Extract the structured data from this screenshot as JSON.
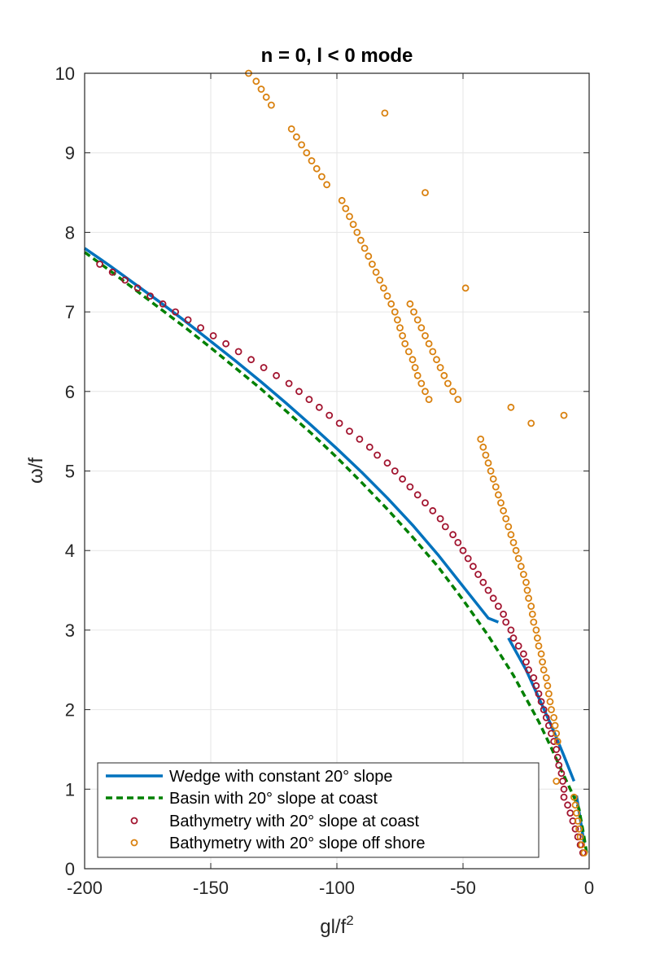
{
  "chart_data": {
    "type": "line",
    "title": "n = 0, l < 0 mode",
    "xlabel": "gl/f",
    "xlabel_sup": "2",
    "ylabel": "ω/f",
    "xlim": [
      -200,
      0
    ],
    "ylim": [
      0,
      10
    ],
    "xticks": [
      -200,
      -150,
      -100,
      -50,
      0
    ],
    "yticks": [
      0,
      1,
      2,
      3,
      4,
      5,
      6,
      7,
      8,
      9,
      10
    ],
    "xtick_labels": [
      "-200",
      "-150",
      "-100",
      "-50",
      "0"
    ],
    "ytick_labels": [
      "0",
      "1",
      "2",
      "3",
      "4",
      "5",
      "6",
      "7",
      "8",
      "9",
      "10"
    ],
    "grid": true,
    "legend_position": "bottom-left",
    "series": [
      {
        "name": "Wedge with constant 20° slope",
        "style": "solid-line",
        "color": "#0072BD",
        "segments": [
          [
            [
              -200,
              7.8
            ],
            [
              -190,
              7.58
            ],
            [
              -180,
              7.35
            ],
            [
              -170,
              7.12
            ],
            [
              -160,
              6.88
            ],
            [
              -150,
              6.63
            ],
            [
              -140,
              6.38
            ],
            [
              -130,
              6.12
            ],
            [
              -120,
              5.85
            ],
            [
              -110,
              5.57
            ],
            [
              -100,
              5.28
            ],
            [
              -90,
              4.98
            ],
            [
              -80,
              4.66
            ],
            [
              -70,
              4.32
            ],
            [
              -60,
              3.95
            ],
            [
              -50,
              3.55
            ],
            [
              -40,
              3.15
            ],
            [
              -36,
              3.1
            ]
          ],
          [
            [
              -32,
              2.9
            ],
            [
              -25,
              2.5
            ],
            [
              -20,
              2.15
            ],
            [
              -15,
              1.8
            ],
            [
              -10,
              1.42
            ],
            [
              -6,
              1.1
            ]
          ],
          [
            [
              -5,
              0.92
            ],
            [
              -4,
              0.72
            ],
            [
              -3,
              0.52
            ],
            [
              -2,
              0.32
            ]
          ]
        ]
      },
      {
        "name": "Basin with 20° slope at coast",
        "style": "dashed-line",
        "color": "#008000",
        "segments": [
          [
            [
              -200,
              7.75
            ],
            [
              -190,
              7.52
            ],
            [
              -180,
              7.28
            ],
            [
              -170,
              7.04
            ],
            [
              -160,
              6.8
            ],
            [
              -150,
              6.55
            ],
            [
              -140,
              6.29
            ],
            [
              -130,
              6.03
            ],
            [
              -120,
              5.75
            ],
            [
              -110,
              5.47
            ],
            [
              -100,
              5.17
            ],
            [
              -90,
              4.85
            ],
            [
              -80,
              4.52
            ],
            [
              -70,
              4.17
            ],
            [
              -60,
              3.8
            ],
            [
              -50,
              3.38
            ],
            [
              -40,
              2.93
            ],
            [
              -30,
              2.43
            ],
            [
              -20,
              1.85
            ],
            [
              -15,
              1.52
            ],
            [
              -10,
              1.17
            ],
            [
              -6,
              0.9
            ],
            [
              -4,
              0.75
            ],
            [
              -2,
              0.4
            ],
            [
              -1,
              0.2
            ]
          ]
        ]
      },
      {
        "name": "Bathymetry with 20° slope at coast",
        "style": "circle-markers",
        "color": "#A2142F",
        "points": [
          [
            -194,
            7.6
          ],
          [
            -189,
            7.5
          ],
          [
            -184,
            7.4
          ],
          [
            -179,
            7.3
          ],
          [
            -174,
            7.2
          ],
          [
            -169,
            7.1
          ],
          [
            -164,
            7.0
          ],
          [
            -159,
            6.9
          ],
          [
            -154,
            6.8
          ],
          [
            -149,
            6.7
          ],
          [
            -144,
            6.6
          ],
          [
            -139,
            6.5
          ],
          [
            -134,
            6.4
          ],
          [
            -129,
            6.3
          ],
          [
            -124,
            6.2
          ],
          [
            -119,
            6.1
          ],
          [
            -115,
            6.0
          ],
          [
            -111,
            5.9
          ],
          [
            -107,
            5.8
          ],
          [
            -103,
            5.7
          ],
          [
            -99,
            5.6
          ],
          [
            -95,
            5.5
          ],
          [
            -91,
            5.4
          ],
          [
            -87,
            5.3
          ],
          [
            -84,
            5.2
          ],
          [
            -80,
            5.1
          ],
          [
            -77,
            5.0
          ],
          [
            -74,
            4.9
          ],
          [
            -71,
            4.8
          ],
          [
            -68,
            4.7
          ],
          [
            -65,
            4.6
          ],
          [
            -62,
            4.5
          ],
          [
            -59,
            4.4
          ],
          [
            -57,
            4.3
          ],
          [
            -54,
            4.2
          ],
          [
            -52,
            4.1
          ],
          [
            -50,
            4.0
          ],
          [
            -48,
            3.9
          ],
          [
            -46,
            3.8
          ],
          [
            -44,
            3.7
          ],
          [
            -42,
            3.6
          ],
          [
            -40,
            3.5
          ],
          [
            -38,
            3.4
          ],
          [
            -36,
            3.3
          ],
          [
            -34,
            3.2
          ],
          [
            -33,
            3.1
          ],
          [
            -31,
            3.0
          ],
          [
            -30,
            2.9
          ],
          [
            -28,
            2.8
          ],
          [
            -26,
            2.7
          ],
          [
            -25,
            2.6
          ],
          [
            -24,
            2.5
          ],
          [
            -22,
            2.4
          ],
          [
            -21,
            2.3
          ],
          [
            -20,
            2.2
          ],
          [
            -19,
            2.1
          ],
          [
            -18,
            2.0
          ],
          [
            -17,
            1.9
          ],
          [
            -16,
            1.8
          ],
          [
            -15,
            1.7
          ],
          [
            -14,
            1.6
          ],
          [
            -13,
            1.5
          ],
          [
            -12.5,
            1.4
          ],
          [
            -12,
            1.3
          ],
          [
            -11,
            1.2
          ],
          [
            -10.5,
            1.1
          ],
          [
            -10,
            1.0
          ],
          [
            -10,
            0.9
          ],
          [
            -8.5,
            0.8
          ],
          [
            -7.5,
            0.7
          ],
          [
            -6.5,
            0.6
          ],
          [
            -5.5,
            0.5
          ],
          [
            -4.5,
            0.4
          ],
          [
            -3.5,
            0.3
          ],
          [
            -2.5,
            0.2
          ]
        ]
      },
      {
        "name": "Bathymetry with 20° slope off shore",
        "style": "circle-markers",
        "color": "#D9810F",
        "points": [
          [
            -135,
            10.0
          ],
          [
            -132,
            9.9
          ],
          [
            -130,
            9.8
          ],
          [
            -128,
            9.7
          ],
          [
            -126,
            9.6
          ],
          [
            -81,
            9.5
          ],
          [
            -65,
            8.5
          ],
          [
            -49,
            7.3
          ],
          [
            -31,
            5.8
          ],
          [
            -23,
            5.6
          ],
          [
            -10,
            5.7
          ],
          [
            -118,
            9.3
          ],
          [
            -116,
            9.2
          ],
          [
            -114,
            9.1
          ],
          [
            -112,
            9.0
          ],
          [
            -110,
            8.9
          ],
          [
            -108,
            8.8
          ],
          [
            -106,
            8.7
          ],
          [
            -104,
            8.6
          ],
          [
            -98,
            8.4
          ],
          [
            -96.5,
            8.3
          ],
          [
            -95,
            8.2
          ],
          [
            -93.5,
            8.1
          ],
          [
            -92,
            8.0
          ],
          [
            -90.5,
            7.9
          ],
          [
            -89,
            7.8
          ],
          [
            -87.5,
            7.7
          ],
          [
            -86,
            7.6
          ],
          [
            -84.5,
            7.5
          ],
          [
            -83,
            7.4
          ],
          [
            -81.5,
            7.3
          ],
          [
            -80,
            7.2
          ],
          [
            -78.5,
            7.1
          ],
          [
            -77,
            7.0
          ],
          [
            -76,
            6.9
          ],
          [
            -75,
            6.8
          ],
          [
            -74,
            6.7
          ],
          [
            -73,
            6.6
          ],
          [
            -71.5,
            6.5
          ],
          [
            -70,
            6.4
          ],
          [
            -69,
            6.3
          ],
          [
            -68,
            6.2
          ],
          [
            -66.5,
            6.1
          ],
          [
            -65,
            6.0
          ],
          [
            -63.5,
            5.9
          ],
          [
            -71,
            7.1
          ],
          [
            -69.5,
            7.0
          ],
          [
            -68,
            6.9
          ],
          [
            -66.5,
            6.8
          ],
          [
            -65,
            6.7
          ],
          [
            -63.5,
            6.6
          ],
          [
            -62,
            6.5
          ],
          [
            -60.5,
            6.4
          ],
          [
            -59,
            6.3
          ],
          [
            -57.5,
            6.2
          ],
          [
            -56,
            6.1
          ],
          [
            -54,
            6.0
          ],
          [
            -52,
            5.9
          ],
          [
            -43,
            5.4
          ],
          [
            -42,
            5.3
          ],
          [
            -41,
            5.2
          ],
          [
            -40,
            5.1
          ],
          [
            -39,
            5.0
          ],
          [
            -38,
            4.9
          ],
          [
            -37,
            4.8
          ],
          [
            -36,
            4.7
          ],
          [
            -35,
            4.6
          ],
          [
            -34,
            4.5
          ],
          [
            -33,
            4.4
          ],
          [
            -32,
            4.3
          ],
          [
            -31,
            4.2
          ],
          [
            -30,
            4.1
          ],
          [
            -29,
            4.0
          ],
          [
            -28,
            3.9
          ],
          [
            -27,
            3.8
          ],
          [
            -26,
            3.7
          ],
          [
            -25,
            3.6
          ],
          [
            -24.5,
            3.5
          ],
          [
            -24,
            3.4
          ],
          [
            -23,
            3.3
          ],
          [
            -22.5,
            3.2
          ],
          [
            -22,
            3.1
          ],
          [
            -21,
            3.0
          ],
          [
            -20.5,
            2.9
          ],
          [
            -20,
            2.8
          ],
          [
            -19,
            2.7
          ],
          [
            -18.5,
            2.6
          ],
          [
            -18,
            2.5
          ],
          [
            -17,
            2.4
          ],
          [
            -16.5,
            2.3
          ],
          [
            -16,
            2.2
          ],
          [
            -15.5,
            2.1
          ],
          [
            -15,
            2.0
          ],
          [
            -14,
            1.9
          ],
          [
            -13.5,
            1.8
          ],
          [
            -13,
            1.7
          ],
          [
            -12.5,
            1.6
          ],
          [
            -13,
            1.1
          ],
          [
            -6,
            0.9
          ],
          [
            -5.5,
            0.8
          ],
          [
            -5,
            0.7
          ],
          [
            -4.5,
            0.6
          ],
          [
            -4,
            0.5
          ],
          [
            -3.5,
            0.4
          ],
          [
            -3,
            0.3
          ],
          [
            -2,
            0.2
          ]
        ]
      }
    ]
  }
}
